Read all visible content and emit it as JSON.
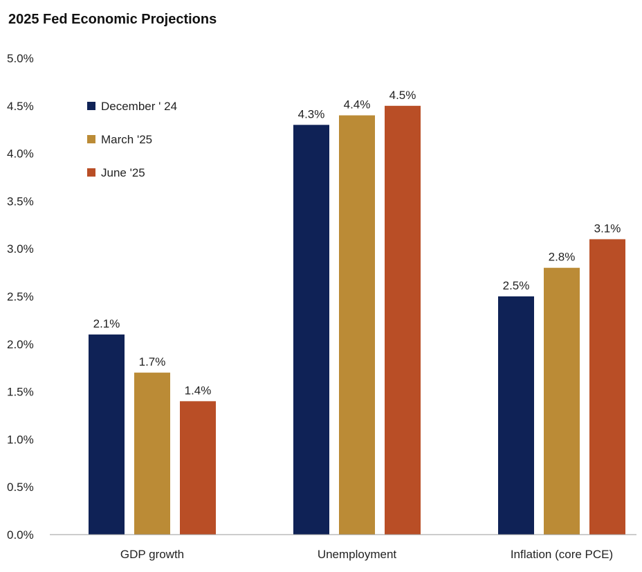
{
  "chart_data": {
    "type": "bar",
    "title": "2025 Fed Economic Projections",
    "xlabel": "",
    "ylabel": "",
    "categories": [
      "GDP growth",
      "Unemployment",
      "Inflation (core PCE)"
    ],
    "series": [
      {
        "name": "December ' 24",
        "color": "#0f2256",
        "values": [
          2.1,
          4.3,
          2.5
        ],
        "labels": [
          "2.1%",
          "4.3%",
          "2.5%"
        ]
      },
      {
        "name": "March '25",
        "color": "#bb8b36",
        "values": [
          1.7,
          4.4,
          2.8
        ],
        "labels": [
          "1.7%",
          "4.4%",
          "2.8%"
        ]
      },
      {
        "name": "June '25",
        "color": "#b94e26",
        "values": [
          1.4,
          4.5,
          3.1
        ],
        "labels": [
          "1.4%",
          "4.5%",
          "3.1%"
        ]
      }
    ],
    "ylim": [
      0,
      5
    ],
    "yticks": [
      0,
      0.5,
      1,
      1.5,
      2,
      2.5,
      3,
      3.5,
      4,
      4.5,
      5
    ],
    "ytick_labels": [
      "0.0%",
      "0.5%",
      "1.0%",
      "1.5%",
      "2.0%",
      "2.5%",
      "3.0%",
      "3.5%",
      "4.0%",
      "4.5%",
      "5.0%"
    ],
    "grid": false,
    "legend_position": "top-left"
  }
}
